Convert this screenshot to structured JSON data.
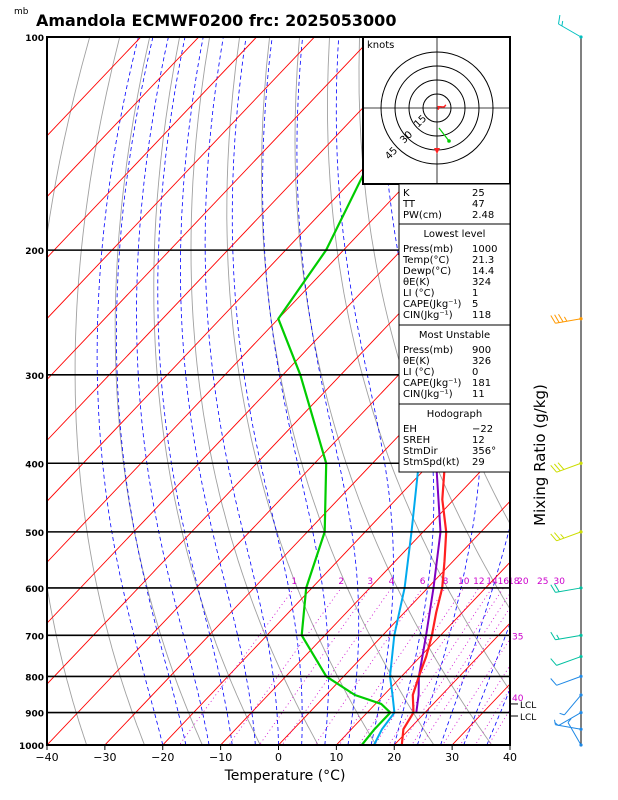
{
  "title": "Amandola ECMWF0200  frc: 2025053000",
  "yunit": "mb",
  "xlabel": "Temperature (°C)",
  "side_label": "Mixing Ratio (g/kg)",
  "hodo_label": "knots",
  "hodo_ring_labels": [
    "15",
    "30",
    "45"
  ],
  "lcl_label": "LCL",
  "colors": {
    "isotherm": "#ff0000",
    "dry_adiabat": "#a0a0a0",
    "moist_adiabat": "#0000ff",
    "mixing_ratio": "#cc00cc",
    "temperature": "#ff2020",
    "dewpoint": "#00cc00",
    "wetbulb": "#00aaee",
    "parcel": "#8000c0",
    "wind": "#00c0c0"
  },
  "chart_data": {
    "type": "line",
    "title": "Amandola ECMWF0200  frc: 2025053000",
    "xlabel": "Temperature (°C)",
    "ylabel": "mb",
    "xlim": [
      -40,
      40
    ],
    "ylim": [
      1000,
      100
    ],
    "pressure_ticks": [
      100,
      200,
      300,
      400,
      500,
      600,
      700,
      800,
      900,
      1000
    ],
    "temperature_ticks": [
      -40,
      -30,
      -20,
      -10,
      0,
      10,
      20,
      30,
      40
    ],
    "mixing_ratio_labels": [
      "1",
      "2",
      "3",
      "4",
      "6",
      "8",
      "10",
      "12",
      "14",
      "16",
      "18",
      "20",
      "25",
      "30",
      "35",
      "40"
    ],
    "series": [
      {
        "role": "temperature",
        "points": [
          [
            1000,
            21.3
          ],
          [
            950,
            19.0
          ],
          [
            900,
            18.0
          ],
          [
            850,
            15.0
          ],
          [
            800,
            13.0
          ],
          [
            750,
            11.0
          ],
          [
            700,
            8.5
          ],
          [
            650,
            5.5
          ],
          [
            600,
            2.5
          ],
          [
            550,
            -1.5
          ],
          [
            500,
            -6.0
          ],
          [
            450,
            -12.0
          ],
          [
            400,
            -17.5
          ],
          [
            350,
            -25.5
          ],
          [
            300,
            -34.0
          ],
          [
            250,
            -44.0
          ],
          [
            225,
            -49.0
          ],
          [
            200,
            -50.0
          ],
          [
            150,
            -54.0
          ],
          [
            100,
            -61.0
          ]
        ]
      },
      {
        "role": "dewpoint",
        "points": [
          [
            1000,
            14.4
          ],
          [
            950,
            14.0
          ],
          [
            900,
            14.0
          ],
          [
            875,
            11.0
          ],
          [
            850,
            5.0
          ],
          [
            800,
            -3.0
          ],
          [
            700,
            -14.0
          ],
          [
            600,
            -21.0
          ],
          [
            500,
            -27.0
          ],
          [
            400,
            -38.0
          ],
          [
            300,
            -57.0
          ],
          [
            250,
            -70.0
          ],
          [
            200,
            -73.0
          ],
          [
            150,
            -80.0
          ],
          [
            100,
            -88.0
          ]
        ]
      },
      {
        "role": "wetbulb",
        "points": [
          [
            1000,
            16.5
          ],
          [
            950,
            15.3
          ],
          [
            900,
            14.7
          ],
          [
            850,
            11.5
          ],
          [
            800,
            8.0
          ],
          [
            700,
            2.0
          ],
          [
            600,
            -4.0
          ],
          [
            500,
            -12.0
          ],
          [
            400,
            -22.0
          ],
          [
            300,
            -39.0
          ],
          [
            200,
            -59.0
          ],
          [
            100,
            -85.0
          ]
        ]
      },
      {
        "role": "parcel",
        "points": [
          [
            900,
            18.5
          ],
          [
            850,
            16.0
          ],
          [
            800,
            13.0
          ],
          [
            700,
            7.5
          ],
          [
            600,
            1.0
          ],
          [
            500,
            -7.0
          ],
          [
            400,
            -19.0
          ],
          [
            300,
            -35.0
          ],
          [
            200,
            -56.0
          ],
          [
            100,
            -80.0
          ]
        ]
      }
    ],
    "wind_barbs": [
      {
        "pressure": 1000,
        "dir": 330,
        "speed_kt": 5
      },
      {
        "pressure": 950,
        "dir": 280,
        "speed_kt": 5
      },
      {
        "pressure": 900,
        "dir": 240,
        "speed_kt": 5
      },
      {
        "pressure": 850,
        "dir": 220,
        "speed_kt": 5
      },
      {
        "pressure": 800,
        "dir": 250,
        "speed_kt": 10
      },
      {
        "pressure": 750,
        "dir": 250,
        "speed_kt": 10
      },
      {
        "pressure": 700,
        "dir": 260,
        "speed_kt": 15
      },
      {
        "pressure": 600,
        "dir": 260,
        "speed_kt": 20
      },
      {
        "pressure": 500,
        "dir": 250,
        "speed_kt": 25
      },
      {
        "pressure": 400,
        "dir": 250,
        "speed_kt": 30
      },
      {
        "pressure": 250,
        "dir": 260,
        "speed_kt": 35
      },
      {
        "pressure": 100,
        "dir": 300,
        "speed_kt": 15
      }
    ],
    "lcl_pressures": [
      875,
      910
    ]
  },
  "indices": {
    "top": [
      {
        "label": "K",
        "value": "25"
      },
      {
        "label": "TT",
        "value": "47"
      },
      {
        "label": "PW(cm)",
        "value": "2.48"
      }
    ],
    "lowest": {
      "header": "Lowest level",
      "rows": [
        {
          "label": "Press(mb)",
          "value": "1000"
        },
        {
          "label": "Temp(°C)",
          "value": "21.3"
        },
        {
          "label": "Dewp(°C)",
          "value": "14.4"
        },
        {
          "label": "θE(K)",
          "value": "324"
        },
        {
          "label": "LI (°C)",
          "value": "1"
        },
        {
          "label": "CAPE(Jkg⁻¹)",
          "value": "5"
        },
        {
          "label": "CIN(Jkg⁻¹)",
          "value": "118"
        }
      ]
    },
    "unstable": {
      "header": "Most Unstable",
      "rows": [
        {
          "label": "Press(mb)",
          "value": "900"
        },
        {
          "label": "θE(K)",
          "value": "326"
        },
        {
          "label": "LI (°C)",
          "value": "0"
        },
        {
          "label": "CAPE(Jkg⁻¹)",
          "value": "181"
        },
        {
          "label": "CIN(Jkg⁻¹)",
          "value": "11"
        }
      ]
    },
    "hodograph": {
      "header": "Hodograph",
      "rows": [
        {
          "label": "EH",
          "value": "−22"
        },
        {
          "label": "SREH",
          "value": "12"
        },
        {
          "label": "StmDir",
          "value": "356°"
        },
        {
          "label": "StmSpd(kt)",
          "value": "29"
        }
      ]
    }
  }
}
